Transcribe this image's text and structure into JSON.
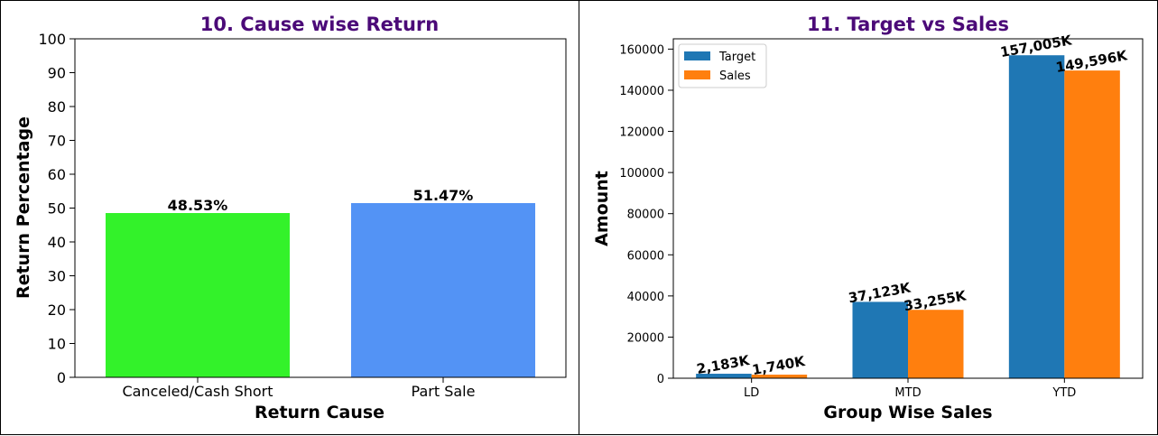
{
  "chart_data": [
    {
      "type": "bar",
      "title": "10. Cause wise Return",
      "xlabel": "Return Cause",
      "ylabel": "Return Percentage",
      "categories": [
        "Canceled/Cash Short",
        "Part Sale"
      ],
      "values": [
        48.53,
        51.47
      ],
      "data_labels": [
        "48.53%",
        "51.47%"
      ],
      "colors": [
        "#33f22a",
        "#5393f5"
      ],
      "ylim": [
        0,
        100
      ],
      "yticks": [
        "0",
        "10",
        "20",
        "30",
        "40",
        "50",
        "60",
        "70",
        "80",
        "90",
        "100"
      ],
      "title_color": "#4b0a78",
      "grid": false,
      "legend": "none"
    },
    {
      "type": "bar",
      "title": "11. Target vs Sales",
      "xlabel": "Group Wise Sales",
      "ylabel": "Amount",
      "categories": [
        "LD",
        "MTD",
        "YTD"
      ],
      "series": [
        {
          "name": "Target",
          "values": [
            2183,
            37123,
            157005
          ],
          "labels": [
            "2,183K",
            "37,123K",
            "157,005K"
          ],
          "color": "#1f77b4"
        },
        {
          "name": "Sales",
          "values": [
            1740,
            33255,
            149596
          ],
          "labels": [
            "1,740K",
            "33,255K",
            "149,596K"
          ],
          "color": "#ff7f0e"
        }
      ],
      "ylim": [
        0,
        165000
      ],
      "yticks": [
        "0",
        "20000",
        "40000",
        "60000",
        "80000",
        "100000",
        "120000",
        "140000",
        "160000"
      ],
      "title_color": "#4b0a78",
      "grid": false,
      "legend": "top-left"
    }
  ]
}
